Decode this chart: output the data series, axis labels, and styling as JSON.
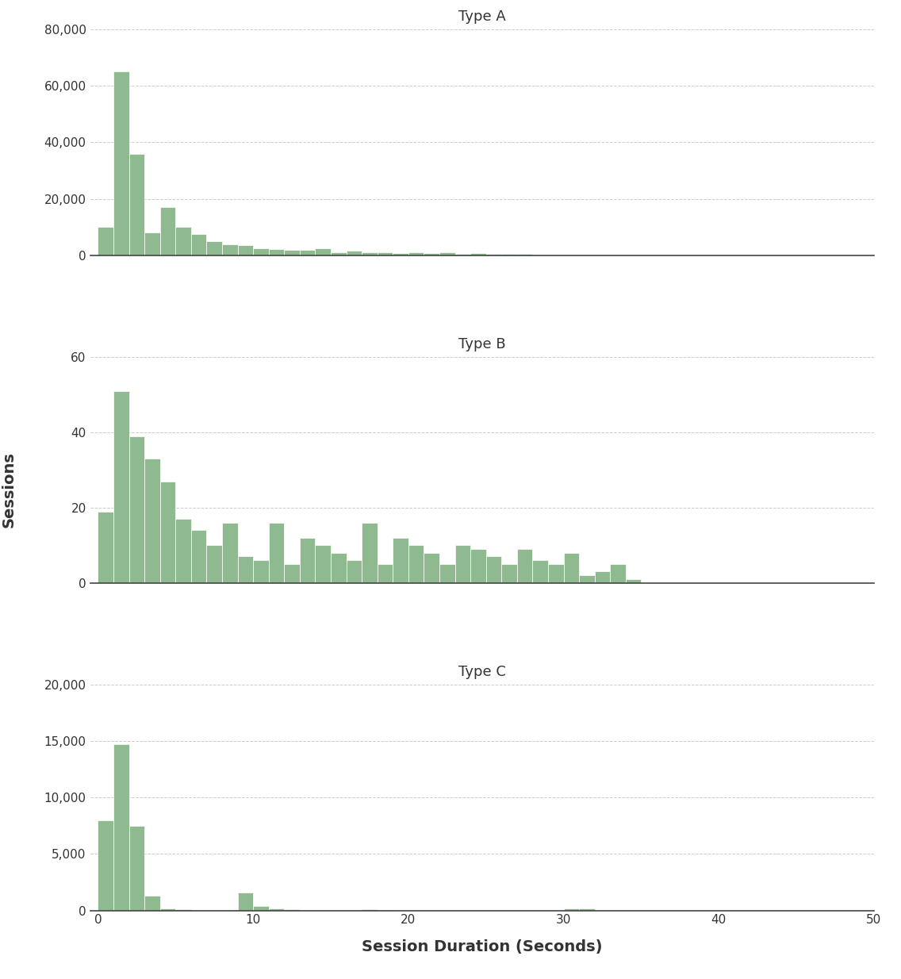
{
  "title_A": "Type A",
  "title_B": "Type B",
  "title_C": "Type C",
  "xlabel": "Session Duration (Seconds)",
  "ylabel": "Sessions",
  "bar_color": "#8fba8f",
  "bar_edgecolor": "white",
  "background_color": "#ffffff",
  "xlim": [
    -0.5,
    50
  ],
  "xticks": [
    0,
    10,
    20,
    30,
    40,
    50
  ],
  "typeA_bins": 50,
  "typeA_values": [
    10000,
    65000,
    36000,
    8000,
    17000,
    10000,
    7500,
    5000,
    4000,
    3500,
    2500,
    2200,
    2000,
    1800,
    2500,
    1200,
    1500,
    1000,
    1000,
    800,
    1000,
    700,
    1200,
    600,
    700,
    500,
    500,
    400,
    350,
    300,
    300,
    200,
    200,
    300,
    200,
    150,
    150,
    150,
    250,
    150,
    100,
    100,
    100,
    100,
    100,
    100,
    50,
    50,
    50,
    50
  ],
  "typeA_ylim": [
    0,
    80000
  ],
  "typeA_yticks": [
    0,
    20000,
    40000,
    60000,
    80000
  ],
  "typeB_values": [
    19,
    51,
    39,
    33,
    27,
    17,
    14,
    10,
    16,
    7,
    6,
    16,
    5,
    12,
    10,
    8,
    6,
    16,
    5,
    12,
    10,
    8,
    5,
    10,
    9,
    7,
    5,
    9,
    6,
    5,
    8,
    2,
    3,
    5,
    1,
    0,
    0,
    0,
    0,
    0,
    0,
    0,
    0,
    0,
    0,
    0,
    0,
    0,
    0,
    0
  ],
  "typeB_ylim": [
    0,
    60
  ],
  "typeB_yticks": [
    0,
    20,
    40,
    60
  ],
  "typeC_values": [
    8000,
    14700,
    7500,
    1300,
    200,
    100,
    0,
    0,
    0,
    1600,
    400,
    200,
    100,
    0,
    0,
    0,
    0,
    80,
    70,
    0,
    0,
    0,
    0,
    0,
    0,
    0,
    0,
    0,
    0,
    0,
    150,
    150,
    0,
    0,
    0,
    0,
    0,
    0,
    0,
    0,
    0,
    0,
    0,
    0,
    0,
    0,
    0,
    0,
    0,
    0
  ],
  "typeC_ylim": [
    0,
    20000
  ],
  "typeC_yticks": [
    0,
    5000,
    10000,
    15000,
    20000
  ]
}
